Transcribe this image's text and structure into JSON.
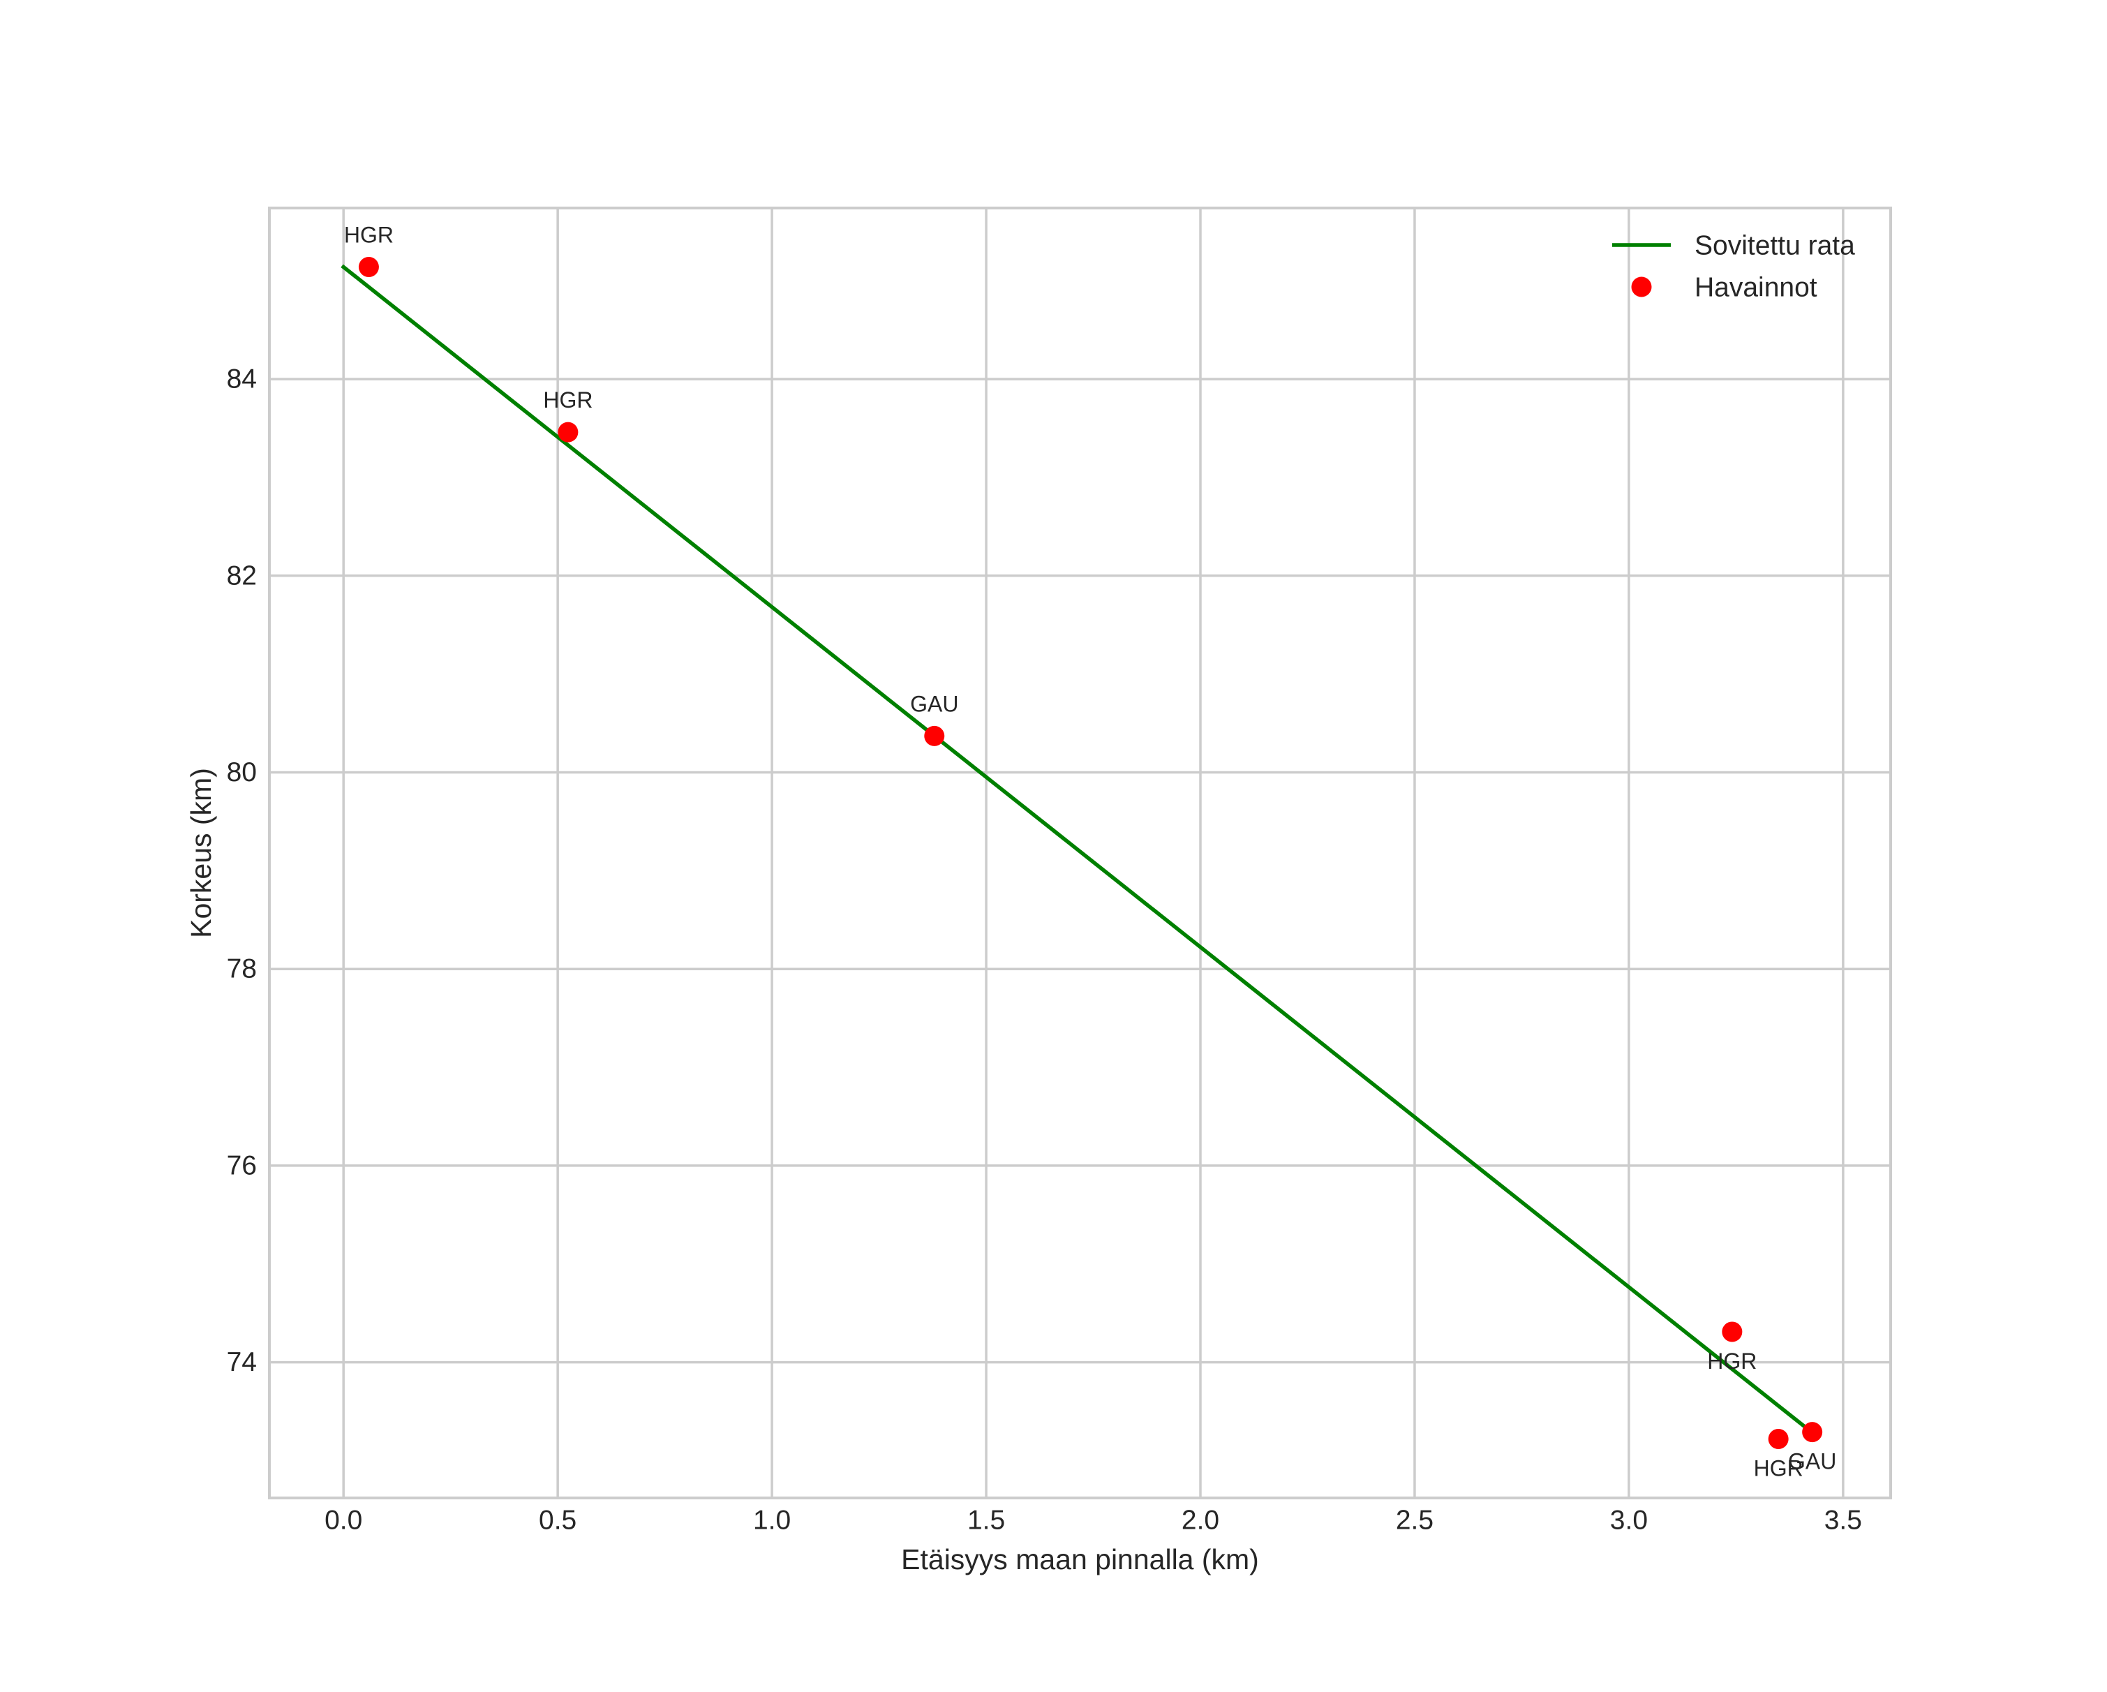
{
  "chart_data": {
    "type": "scatter",
    "title": "",
    "xlabel": "Etäisyys maan pinnalla (km)",
    "ylabel": "Korkeus (km)",
    "xlim": [
      -0.173,
      3.611
    ],
    "ylim": [
      72.62,
      85.74
    ],
    "x_ticks": [
      0.0,
      0.5,
      1.0,
      1.5,
      2.0,
      2.5,
      3.0,
      3.5
    ],
    "x_tick_labels": [
      "0.0",
      "0.5",
      "1.0",
      "1.5",
      "2.0",
      "2.5",
      "3.0",
      "3.5"
    ],
    "y_ticks": [
      74,
      76,
      78,
      80,
      82,
      84
    ],
    "y_tick_labels": [
      "74",
      "76",
      "78",
      "80",
      "82",
      "84"
    ],
    "grid": true,
    "legend_position": "upper right",
    "series": [
      {
        "name": "Sovitettu rata",
        "type": "line",
        "color": "#008000",
        "x": [
          0.0,
          3.409
        ],
        "y": [
          85.14,
          73.35
        ]
      },
      {
        "name": "Havainnot",
        "type": "scatter",
        "color": "#ff0000",
        "points": [
          {
            "x": 0.059,
            "y": 85.14,
            "label": "HGR",
            "label_position": "above"
          },
          {
            "x": 0.524,
            "y": 83.46,
            "label": "HGR",
            "label_position": "above"
          },
          {
            "x": 1.379,
            "y": 80.37,
            "label": "GAU",
            "label_position": "above"
          },
          {
            "x": 3.241,
            "y": 74.31,
            "label": "HGR",
            "label_position": "below"
          },
          {
            "x": 3.349,
            "y": 73.22,
            "label": "HGR",
            "label_position": "below"
          },
          {
            "x": 3.428,
            "y": 73.29,
            "label": "GAU",
            "label_position": "below"
          }
        ]
      }
    ],
    "legend": [
      {
        "label": "Sovitettu rata",
        "symbol": "line",
        "color": "#008000"
      },
      {
        "label": "Havainnot",
        "symbol": "circle",
        "color": "#ff0000"
      }
    ]
  },
  "colors": {
    "fit_line": "#008000",
    "observations": "#ff0000",
    "grid": "#cccccc",
    "text": "#262626",
    "background": "#ffffff"
  }
}
